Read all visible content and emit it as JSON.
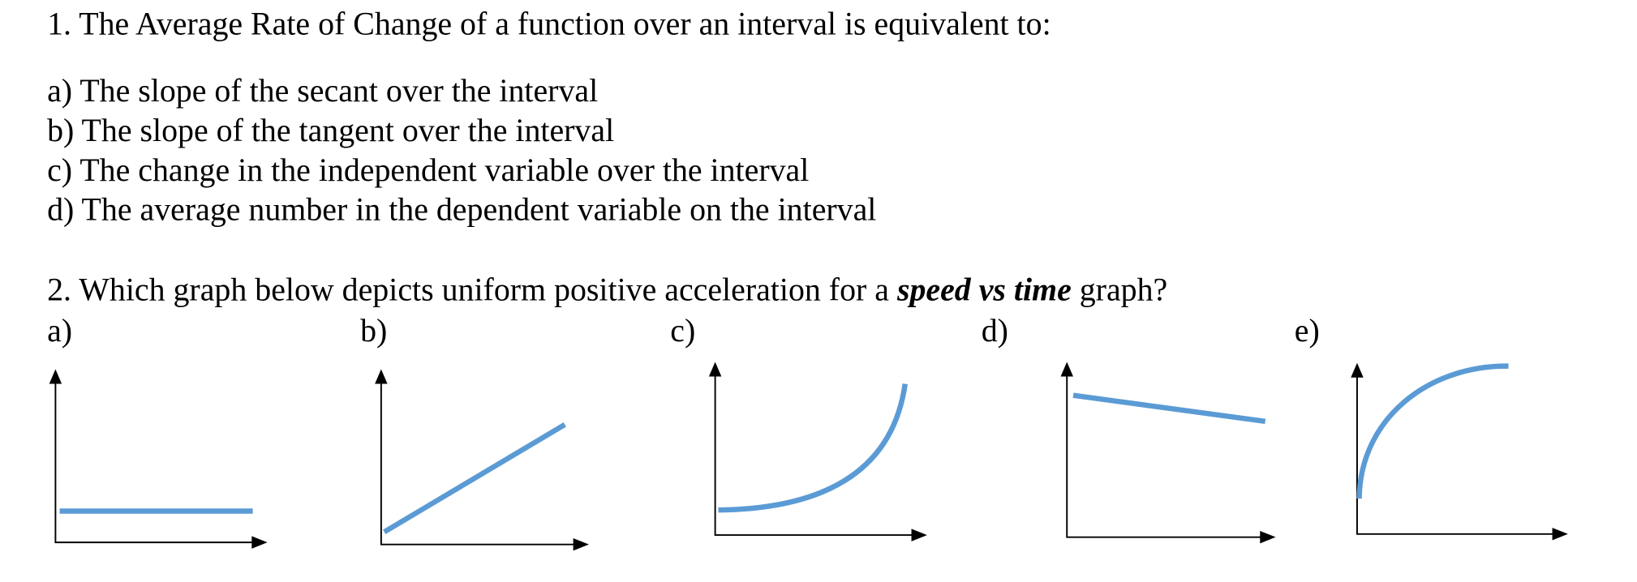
{
  "question1": {
    "text": "1. The Average Rate of Change of a function over an interval is equivalent to:",
    "options": [
      "a) The slope of the secant over the interval",
      "b) The slope of the tangent over the interval",
      "c) The change in the independent variable over the interval",
      "d) The average number in the dependent variable on the interval"
    ]
  },
  "question2": {
    "text_before": "2. Which graph below depicts uniform positive acceleration for a",
    "emphasis": "speed vs time",
    "text_after": "graph?",
    "options": [
      "a)",
      "b)",
      "c)",
      "d)",
      "e)"
    ]
  }
}
